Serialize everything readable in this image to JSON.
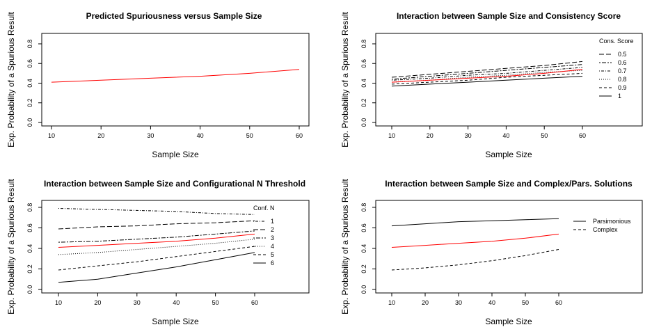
{
  "chart_data": [
    {
      "type": "line",
      "title": "Predicted Spuriousness versus Sample Size",
      "xlabel": "Sample Size",
      "ylabel": "Exp. Probability of a Spurious Result",
      "xlim": [
        10,
        60
      ],
      "ylim": [
        0,
        0.8
      ],
      "x_ticks": [
        "10",
        "20",
        "30",
        "40",
        "50",
        "60"
      ],
      "y_ticks": [
        "0.0",
        "0.2",
        "0.4",
        "0.6",
        "0.8"
      ],
      "x": [
        10,
        20,
        30,
        40,
        50,
        60
      ],
      "series": [
        {
          "values": [
            0.41,
            0.43,
            0.45,
            0.47,
            0.5,
            0.54
          ],
          "color": "#ff0000",
          "dash": "solid"
        }
      ],
      "grid": false
    },
    {
      "type": "line",
      "title": "Interaction between Sample Size and Consistency Score",
      "xlabel": "Sample Size",
      "ylabel": "Exp. Probability of a Spurious Result",
      "xlim": [
        10,
        60
      ],
      "ylim": [
        0,
        0.8
      ],
      "x_ticks": [
        "10",
        "20",
        "30",
        "40",
        "50",
        "60"
      ],
      "y_ticks": [
        "0.0",
        "0.2",
        "0.4",
        "0.6",
        "0.8"
      ],
      "x": [
        10,
        20,
        30,
        40,
        50,
        60
      ],
      "legend": {
        "title": "Cons. Score",
        "placement": "top-right"
      },
      "series": [
        {
          "name": "0.5",
          "values": [
            0.46,
            0.49,
            0.52,
            0.55,
            0.58,
            0.62
          ],
          "color": "#000000",
          "dash": "longdash"
        },
        {
          "name": "0.6",
          "values": [
            0.44,
            0.47,
            0.5,
            0.53,
            0.56,
            0.59
          ],
          "color": "#000000",
          "dash": "twodash"
        },
        {
          "name": "0.7",
          "values": [
            0.43,
            0.45,
            0.48,
            0.5,
            0.53,
            0.56
          ],
          "color": "#000000",
          "dash": "dotdash"
        },
        {
          "name": "0.8",
          "values": [
            0.41,
            0.43,
            0.46,
            0.48,
            0.51,
            0.53
          ],
          "color": "#000000",
          "dash": "dotted"
        },
        {
          "name": "0.9",
          "values": [
            0.39,
            0.41,
            0.43,
            0.46,
            0.48,
            0.5
          ],
          "color": "#000000",
          "dash": "dashed"
        },
        {
          "name": "1",
          "values": [
            0.37,
            0.39,
            0.41,
            0.43,
            0.45,
            0.47
          ],
          "color": "#000000",
          "dash": "solid"
        },
        {
          "values": [
            0.41,
            0.43,
            0.45,
            0.47,
            0.5,
            0.54
          ],
          "color": "#ff0000",
          "dash": "solid"
        }
      ],
      "grid": false
    },
    {
      "type": "line",
      "title": "Interaction between Sample Size and Configurational N Threshold",
      "xlabel": "Sample Size",
      "ylabel": "Exp. Probability of a Spurious Result",
      "xlim": [
        10,
        60
      ],
      "ylim": [
        0,
        0.8
      ],
      "x_ticks": [
        "10",
        "20",
        "30",
        "40",
        "50",
        "60"
      ],
      "y_ticks": [
        "0.0",
        "0.2",
        "0.4",
        "0.6",
        "0.8"
      ],
      "x": [
        10,
        20,
        30,
        40,
        50,
        60
      ],
      "legend": {
        "title": "Conf. N",
        "placement": "top-right"
      },
      "series": [
        {
          "name": "1",
          "values": [
            0.79,
            0.78,
            0.77,
            0.76,
            0.74,
            0.73
          ],
          "color": "#000000",
          "dash": "dotdash"
        },
        {
          "name": "2",
          "values": [
            0.59,
            0.61,
            0.62,
            0.64,
            0.65,
            0.67
          ],
          "color": "#000000",
          "dash": "longdash"
        },
        {
          "name": "3",
          "values": [
            0.46,
            0.47,
            0.49,
            0.51,
            0.54,
            0.57
          ],
          "color": "#000000",
          "dash": "twodash"
        },
        {
          "name": "4",
          "values": [
            0.34,
            0.36,
            0.39,
            0.42,
            0.45,
            0.49
          ],
          "color": "#000000",
          "dash": "dotted"
        },
        {
          "name": "5",
          "values": [
            0.19,
            0.23,
            0.27,
            0.32,
            0.37,
            0.42
          ],
          "color": "#000000",
          "dash": "dashed"
        },
        {
          "name": "6",
          "values": [
            0.07,
            0.1,
            0.16,
            0.22,
            0.29,
            0.36
          ],
          "color": "#000000",
          "dash": "solid"
        },
        {
          "values": [
            0.41,
            0.43,
            0.45,
            0.47,
            0.5,
            0.54
          ],
          "color": "#ff0000",
          "dash": "solid"
        }
      ],
      "grid": false
    },
    {
      "type": "line",
      "title": "Interaction between Sample Size and Complex/Pars. Solutions",
      "xlabel": "Sample Size",
      "ylabel": "Exp. Probability of a Spurious Result",
      "xlim": [
        10,
        60
      ],
      "ylim": [
        0,
        0.8
      ],
      "x_ticks": [
        "10",
        "20",
        "30",
        "40",
        "50",
        "60"
      ],
      "y_ticks": [
        "0.0",
        "0.2",
        "0.4",
        "0.6",
        "0.8"
      ],
      "x": [
        10,
        20,
        30,
        40,
        50,
        60
      ],
      "legend": {
        "title": "",
        "placement": "top-right"
      },
      "series": [
        {
          "name": "Parsimonious",
          "values": [
            0.62,
            0.64,
            0.66,
            0.67,
            0.68,
            0.69
          ],
          "color": "#000000",
          "dash": "solid"
        },
        {
          "name": "Complex",
          "values": [
            0.19,
            0.21,
            0.24,
            0.28,
            0.33,
            0.39
          ],
          "color": "#000000",
          "dash": "dashed"
        },
        {
          "values": [
            0.41,
            0.43,
            0.45,
            0.47,
            0.5,
            0.54
          ],
          "color": "#ff0000",
          "dash": "solid"
        }
      ],
      "grid": false
    }
  ]
}
